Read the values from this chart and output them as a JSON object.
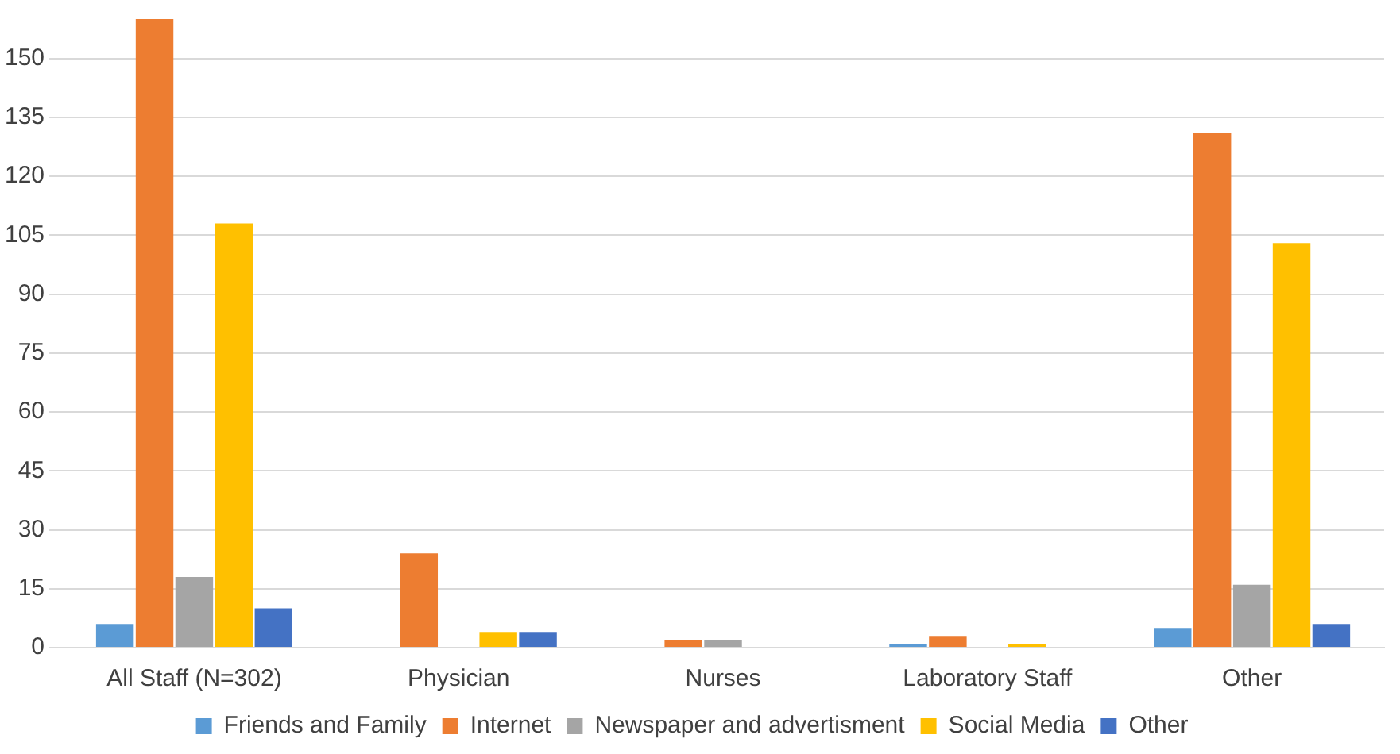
{
  "chart_data": {
    "type": "bar",
    "categories": [
      "All Staff (N=302)",
      "Physician",
      "Nurses",
      "Laboratory Staff",
      "Other"
    ],
    "series": [
      {
        "name": "Friends and Family",
        "color": "#5b9bd5",
        "values": [
          6,
          0,
          0,
          1,
          5
        ]
      },
      {
        "name": "Internet",
        "color": "#ed7d31",
        "values": [
          160,
          24,
          2,
          3,
          131
        ]
      },
      {
        "name": "Newspaper and advertisment",
        "color": "#a5a5a5",
        "values": [
          18,
          0,
          2,
          0,
          16
        ]
      },
      {
        "name": "Social Media",
        "color": "#ffc000",
        "values": [
          108,
          4,
          0,
          1,
          103
        ]
      },
      {
        "name": "Other",
        "color": "#4472c4",
        "values": [
          10,
          4,
          0,
          0,
          6
        ]
      }
    ],
    "ylim": [
      0,
      160
    ],
    "yticks": [
      0,
      15,
      30,
      45,
      60,
      75,
      90,
      105,
      120,
      135,
      150
    ],
    "grid": "y",
    "legend": "bottom"
  }
}
